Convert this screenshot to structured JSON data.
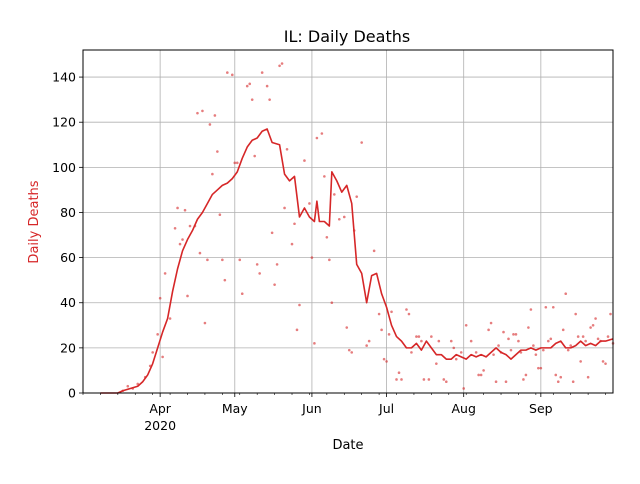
{
  "chart_data": {
    "type": "line",
    "title": "IL: Daily Deaths",
    "xlabel": "Date",
    "ylabel": "Daily Deaths",
    "ylabel_color": "#d62728",
    "line_color": "#d62728",
    "grid": true,
    "x_range": [
      "2020-03-01",
      "2020-09-30"
    ],
    "ylim": [
      0,
      152
    ],
    "y_ticks": [
      0,
      20,
      40,
      60,
      80,
      100,
      120,
      140
    ],
    "x_ticks": [
      {
        "date": "2020-04-01",
        "label": "Apr",
        "sublabel": "2020"
      },
      {
        "date": "2020-05-01",
        "label": "May",
        "sublabel": ""
      },
      {
        "date": "2020-06-01",
        "label": "Jun",
        "sublabel": ""
      },
      {
        "date": "2020-07-01",
        "label": "Jul",
        "sublabel": ""
      },
      {
        "date": "2020-08-01",
        "label": "Aug",
        "sublabel": ""
      },
      {
        "date": "2020-09-01",
        "label": "Sep",
        "sublabel": ""
      }
    ],
    "series": [
      {
        "style": "line",
        "points": [
          [
            "2020-03-08",
            0
          ],
          [
            "2020-03-15",
            0
          ],
          [
            "2020-03-17",
            1
          ],
          [
            "2020-03-20",
            2
          ],
          [
            "2020-03-23",
            3
          ],
          [
            "2020-03-25",
            5
          ],
          [
            "2020-03-27",
            8
          ],
          [
            "2020-03-29",
            13
          ],
          [
            "2020-03-31",
            20
          ],
          [
            "2020-04-02",
            27
          ],
          [
            "2020-04-04",
            33
          ],
          [
            "2020-04-06",
            45
          ],
          [
            "2020-04-08",
            55
          ],
          [
            "2020-04-10",
            63
          ],
          [
            "2020-04-12",
            68
          ],
          [
            "2020-04-14",
            72
          ],
          [
            "2020-04-16",
            77
          ],
          [
            "2020-04-18",
            80
          ],
          [
            "2020-04-20",
            84
          ],
          [
            "2020-04-22",
            88
          ],
          [
            "2020-04-24",
            90
          ],
          [
            "2020-04-26",
            92
          ],
          [
            "2020-04-28",
            93
          ],
          [
            "2020-04-30",
            95
          ],
          [
            "2020-05-02",
            98
          ],
          [
            "2020-05-04",
            104
          ],
          [
            "2020-05-06",
            109
          ],
          [
            "2020-05-08",
            112
          ],
          [
            "2020-05-10",
            113
          ],
          [
            "2020-05-12",
            116
          ],
          [
            "2020-05-14",
            117
          ],
          [
            "2020-05-16",
            111
          ],
          [
            "2020-05-19",
            110
          ],
          [
            "2020-05-21",
            97
          ],
          [
            "2020-05-23",
            94
          ],
          [
            "2020-05-25",
            96
          ],
          [
            "2020-05-27",
            78
          ],
          [
            "2020-05-29",
            82
          ],
          [
            "2020-05-31",
            78
          ],
          [
            "2020-06-02",
            76
          ],
          [
            "2020-06-03",
            85
          ],
          [
            "2020-06-04",
            76
          ],
          [
            "2020-06-06",
            76
          ],
          [
            "2020-06-08",
            74
          ],
          [
            "2020-06-09",
            98
          ],
          [
            "2020-06-11",
            94
          ],
          [
            "2020-06-13",
            89
          ],
          [
            "2020-06-15",
            92
          ],
          [
            "2020-06-17",
            84
          ],
          [
            "2020-06-19",
            57
          ],
          [
            "2020-06-21",
            53
          ],
          [
            "2020-06-23",
            40
          ],
          [
            "2020-06-25",
            52
          ],
          [
            "2020-06-27",
            53
          ],
          [
            "2020-06-29",
            44
          ],
          [
            "2020-07-01",
            38
          ],
          [
            "2020-07-03",
            30
          ],
          [
            "2020-07-05",
            25
          ],
          [
            "2020-07-07",
            23
          ],
          [
            "2020-07-09",
            20
          ],
          [
            "2020-07-11",
            20
          ],
          [
            "2020-07-13",
            22
          ],
          [
            "2020-07-15",
            19
          ],
          [
            "2020-07-17",
            23
          ],
          [
            "2020-07-19",
            20
          ],
          [
            "2020-07-21",
            17
          ],
          [
            "2020-07-23",
            17
          ],
          [
            "2020-07-25",
            15
          ],
          [
            "2020-07-27",
            15
          ],
          [
            "2020-07-29",
            17
          ],
          [
            "2020-07-31",
            16
          ],
          [
            "2020-08-02",
            15
          ],
          [
            "2020-08-04",
            17
          ],
          [
            "2020-08-06",
            16
          ],
          [
            "2020-08-08",
            17
          ],
          [
            "2020-08-10",
            16
          ],
          [
            "2020-08-12",
            18
          ],
          [
            "2020-08-14",
            20
          ],
          [
            "2020-08-16",
            18
          ],
          [
            "2020-08-18",
            17
          ],
          [
            "2020-08-20",
            15
          ],
          [
            "2020-08-22",
            17
          ],
          [
            "2020-08-24",
            19
          ],
          [
            "2020-08-26",
            19
          ],
          [
            "2020-08-28",
            20
          ],
          [
            "2020-08-30",
            19
          ],
          [
            "2020-09-01",
            20
          ],
          [
            "2020-09-03",
            20
          ],
          [
            "2020-09-05",
            20
          ],
          [
            "2020-09-07",
            22
          ],
          [
            "2020-09-09",
            23
          ],
          [
            "2020-09-11",
            20
          ],
          [
            "2020-09-13",
            20
          ],
          [
            "2020-09-15",
            21
          ],
          [
            "2020-09-17",
            23
          ],
          [
            "2020-09-19",
            21
          ],
          [
            "2020-09-21",
            22
          ],
          [
            "2020-09-23",
            21
          ],
          [
            "2020-09-25",
            23
          ],
          [
            "2020-09-27",
            23
          ],
          [
            "2020-09-30",
            24
          ]
        ]
      },
      {
        "style": "scatter",
        "points": [
          [
            "2020-03-17",
            1
          ],
          [
            "2020-03-19",
            3
          ],
          [
            "2020-03-21",
            2
          ],
          [
            "2020-03-23",
            4
          ],
          [
            "2020-03-26",
            7
          ],
          [
            "2020-03-28",
            12
          ],
          [
            "2020-03-29",
            18
          ],
          [
            "2020-03-31",
            26
          ],
          [
            "2020-04-01",
            42
          ],
          [
            "2020-04-02",
            16
          ],
          [
            "2020-04-03",
            53
          ],
          [
            "2020-04-05",
            33
          ],
          [
            "2020-04-07",
            73
          ],
          [
            "2020-04-08",
            82
          ],
          [
            "2020-04-09",
            66
          ],
          [
            "2020-04-10",
            68
          ],
          [
            "2020-04-11",
            81
          ],
          [
            "2020-04-12",
            43
          ],
          [
            "2020-04-13",
            74
          ],
          [
            "2020-04-15",
            74
          ],
          [
            "2020-04-16",
            124
          ],
          [
            "2020-04-17",
            62
          ],
          [
            "2020-04-18",
            125
          ],
          [
            "2020-04-19",
            31
          ],
          [
            "2020-04-20",
            59
          ],
          [
            "2020-04-21",
            119
          ],
          [
            "2020-04-22",
            97
          ],
          [
            "2020-04-23",
            123
          ],
          [
            "2020-04-24",
            107
          ],
          [
            "2020-04-25",
            79
          ],
          [
            "2020-04-26",
            59
          ],
          [
            "2020-04-27",
            50
          ],
          [
            "2020-04-28",
            142
          ],
          [
            "2020-04-30",
            141
          ],
          [
            "2020-05-01",
            102
          ],
          [
            "2020-05-02",
            102
          ],
          [
            "2020-05-03",
            59
          ],
          [
            "2020-05-04",
            44
          ],
          [
            "2020-05-06",
            136
          ],
          [
            "2020-05-07",
            137
          ],
          [
            "2020-05-08",
            130
          ],
          [
            "2020-05-09",
            105
          ],
          [
            "2020-05-10",
            57
          ],
          [
            "2020-05-11",
            53
          ],
          [
            "2020-05-12",
            142
          ],
          [
            "2020-05-14",
            136
          ],
          [
            "2020-05-15",
            130
          ],
          [
            "2020-05-16",
            71
          ],
          [
            "2020-05-17",
            48
          ],
          [
            "2020-05-18",
            57
          ],
          [
            "2020-05-19",
            145
          ],
          [
            "2020-05-20",
            146
          ],
          [
            "2020-05-21",
            82
          ],
          [
            "2020-05-22",
            108
          ],
          [
            "2020-05-24",
            66
          ],
          [
            "2020-05-25",
            75
          ],
          [
            "2020-05-26",
            28
          ],
          [
            "2020-05-27",
            39
          ],
          [
            "2020-05-29",
            103
          ],
          [
            "2020-05-31",
            84
          ],
          [
            "2020-06-01",
            60
          ],
          [
            "2020-06-02",
            22
          ],
          [
            "2020-06-03",
            113
          ],
          [
            "2020-06-05",
            115
          ],
          [
            "2020-06-06",
            96
          ],
          [
            "2020-06-07",
            69
          ],
          [
            "2020-06-08",
            59
          ],
          [
            "2020-06-09",
            40
          ],
          [
            "2020-06-10",
            88
          ],
          [
            "2020-06-12",
            77
          ],
          [
            "2020-06-14",
            78
          ],
          [
            "2020-06-15",
            29
          ],
          [
            "2020-06-16",
            19
          ],
          [
            "2020-06-17",
            18
          ],
          [
            "2020-06-18",
            72
          ],
          [
            "2020-06-19",
            87
          ],
          [
            "2020-06-21",
            111
          ],
          [
            "2020-06-23",
            21
          ],
          [
            "2020-06-24",
            23
          ],
          [
            "2020-06-26",
            63
          ],
          [
            "2020-06-28",
            35
          ],
          [
            "2020-06-29",
            28
          ],
          [
            "2020-06-30",
            15
          ],
          [
            "2020-07-01",
            14
          ],
          [
            "2020-07-02",
            26
          ],
          [
            "2020-07-03",
            36
          ],
          [
            "2020-07-05",
            6
          ],
          [
            "2020-07-06",
            9
          ],
          [
            "2020-07-07",
            6
          ],
          [
            "2020-07-09",
            37
          ],
          [
            "2020-07-10",
            35
          ],
          [
            "2020-07-11",
            18
          ],
          [
            "2020-07-13",
            25
          ],
          [
            "2020-07-14",
            25
          ],
          [
            "2020-07-15",
            23
          ],
          [
            "2020-07-16",
            6
          ],
          [
            "2020-07-18",
            6
          ],
          [
            "2020-07-19",
            25
          ],
          [
            "2020-07-21",
            13
          ],
          [
            "2020-07-22",
            23
          ],
          [
            "2020-07-24",
            6
          ],
          [
            "2020-07-25",
            5
          ],
          [
            "2020-07-27",
            23
          ],
          [
            "2020-07-28",
            20
          ],
          [
            "2020-07-29",
            15
          ],
          [
            "2020-07-31",
            18
          ],
          [
            "2020-08-01",
            2
          ],
          [
            "2020-08-02",
            30
          ],
          [
            "2020-08-04",
            23
          ],
          [
            "2020-08-06",
            18
          ],
          [
            "2020-08-07",
            8
          ],
          [
            "2020-08-08",
            8
          ],
          [
            "2020-08-09",
            10
          ],
          [
            "2020-08-11",
            28
          ],
          [
            "2020-08-12",
            31
          ],
          [
            "2020-08-13",
            17
          ],
          [
            "2020-08-14",
            5
          ],
          [
            "2020-08-15",
            21
          ],
          [
            "2020-08-16",
            18
          ],
          [
            "2020-08-17",
            27
          ],
          [
            "2020-08-18",
            5
          ],
          [
            "2020-08-19",
            24
          ],
          [
            "2020-08-20",
            19
          ],
          [
            "2020-08-21",
            26
          ],
          [
            "2020-08-22",
            26
          ],
          [
            "2020-08-23",
            23
          ],
          [
            "2020-08-24",
            18
          ],
          [
            "2020-08-25",
            6
          ],
          [
            "2020-08-26",
            8
          ],
          [
            "2020-08-27",
            29
          ],
          [
            "2020-08-28",
            37
          ],
          [
            "2020-08-29",
            21
          ],
          [
            "2020-08-30",
            17
          ],
          [
            "2020-08-31",
            11
          ],
          [
            "2020-09-01",
            11
          ],
          [
            "2020-09-02",
            19
          ],
          [
            "2020-09-03",
            38
          ],
          [
            "2020-09-04",
            23
          ],
          [
            "2020-09-05",
            24
          ],
          [
            "2020-09-06",
            38
          ],
          [
            "2020-09-07",
            8
          ],
          [
            "2020-09-08",
            5
          ],
          [
            "2020-09-09",
            7
          ],
          [
            "2020-09-10",
            28
          ],
          [
            "2020-09-11",
            44
          ],
          [
            "2020-09-12",
            19
          ],
          [
            "2020-09-13",
            21
          ],
          [
            "2020-09-14",
            5
          ],
          [
            "2020-09-15",
            35
          ],
          [
            "2020-09-16",
            25
          ],
          [
            "2020-09-17",
            14
          ],
          [
            "2020-09-18",
            25
          ],
          [
            "2020-09-19",
            23
          ],
          [
            "2020-09-20",
            7
          ],
          [
            "2020-09-21",
            29
          ],
          [
            "2020-09-22",
            30
          ],
          [
            "2020-09-23",
            33
          ],
          [
            "2020-09-24",
            24
          ],
          [
            "2020-09-25",
            23
          ],
          [
            "2020-09-26",
            14
          ],
          [
            "2020-09-27",
            13
          ],
          [
            "2020-09-28",
            25
          ],
          [
            "2020-09-29",
            35
          ],
          [
            "2020-09-30",
            22
          ]
        ]
      }
    ]
  }
}
